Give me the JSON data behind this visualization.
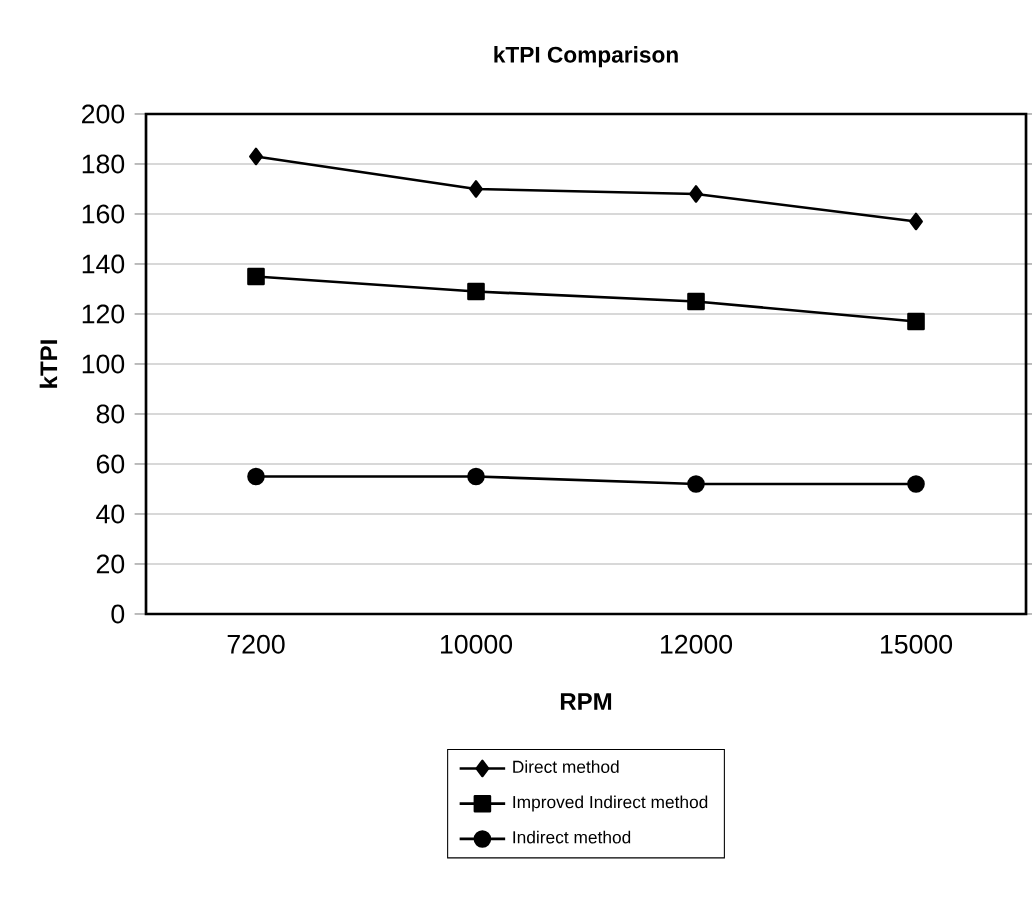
{
  "chart_data": {
    "type": "line",
    "title": "kTPI Comparison",
    "xlabel": "RPM",
    "ylabel": "kTPI",
    "categories": [
      "7200",
      "10000",
      "12000",
      "15000"
    ],
    "series": [
      {
        "name": "Direct method",
        "color": "#000000",
        "marker": "diamond",
        "values": [
          183,
          170,
          168,
          157
        ]
      },
      {
        "name": "Improved Indirect method",
        "color": "#000000",
        "marker": "square",
        "values": [
          135,
          129,
          125,
          117
        ]
      },
      {
        "name": "Indirect method",
        "color": "#000000",
        "marker": "circle",
        "values": [
          55,
          55,
          52,
          52
        ]
      }
    ],
    "ylim": [
      0,
      200
    ],
    "yticks": [
      0,
      20,
      40,
      60,
      80,
      100,
      120,
      140,
      160,
      180,
      200
    ],
    "grid": "y",
    "legend": "bottom",
    "line_style": "solid"
  }
}
